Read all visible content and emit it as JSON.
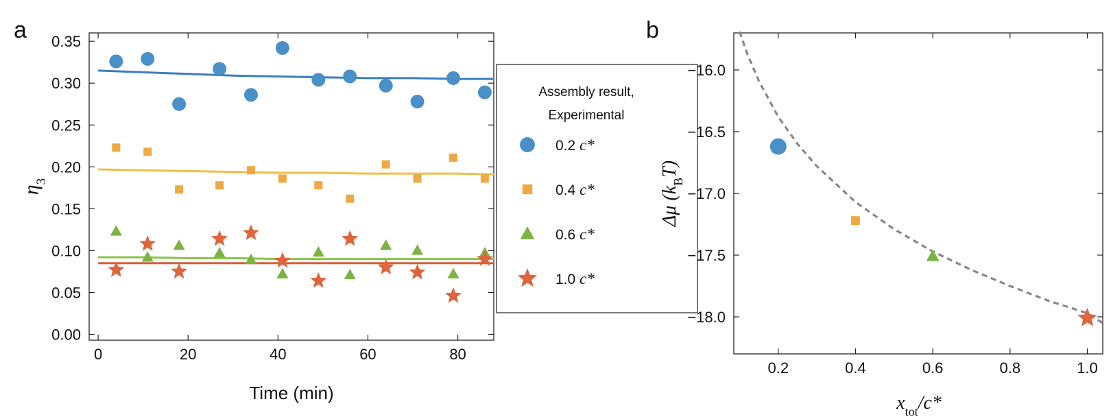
{
  "colors": {
    "blue": "#4A90C8",
    "orange": "#EFA944",
    "green": "#7CB342",
    "red": "#E0643C",
    "curve_blue": "#3B7DC4",
    "curve_orange": "#F2BE45",
    "curve_green": "#8BC34A",
    "curve_red": "#D6603A",
    "dashed": "#888888"
  },
  "legend": {
    "title_line1": "Assembly result,",
    "title_line2": "Experimental",
    "items": [
      {
        "num": "0.2",
        "unit": "c*",
        "marker": "circle",
        "color": "#4A90C8"
      },
      {
        "num": "0.4",
        "unit": "c*",
        "marker": "square",
        "color": "#EFA944"
      },
      {
        "num": "0.6",
        "unit": "c*",
        "marker": "triangle",
        "color": "#7CB342"
      },
      {
        "num": "1.0",
        "unit": "c*",
        "marker": "star",
        "color": "#E0643C"
      }
    ]
  },
  "chart_data": [
    {
      "panel_label": "a",
      "type": "scatter",
      "xlabel": "Time (min)",
      "ylabel_main": "η",
      "ylabel_sub": "3",
      "xlim": [
        -2,
        88
      ],
      "ylim": [
        -0.007,
        0.36
      ],
      "xticks": [
        0,
        20,
        40,
        60,
        80
      ],
      "xtick_labels": [
        "0",
        "20",
        "40",
        "60",
        "80"
      ],
      "yticks": [
        0.0,
        0.05,
        0.1,
        0.15,
        0.2,
        0.25,
        0.3,
        0.35
      ],
      "ytick_labels": [
        "0.00",
        "0.05",
        "0.10",
        "0.15",
        "0.20",
        "0.25",
        "0.30",
        "0.35"
      ],
      "series": [
        {
          "name": "0.2 c*",
          "marker": "circle",
          "color": "#4A90C8",
          "x": [
            4,
            11,
            18,
            27,
            34,
            41,
            49,
            56,
            64,
            71,
            79,
            86
          ],
          "y": [
            0.326,
            0.329,
            0.275,
            0.317,
            0.286,
            0.342,
            0.304,
            0.308,
            0.297,
            0.278,
            0.306,
            0.289
          ],
          "fit_x": [
            0,
            10,
            20,
            30,
            40,
            50,
            60,
            70,
            80,
            88
          ],
          "fit_y": [
            0.315,
            0.313,
            0.311,
            0.309,
            0.308,
            0.307,
            0.306,
            0.306,
            0.305,
            0.305
          ],
          "fit_color": "#3B7DC4"
        },
        {
          "name": "0.4 c*",
          "marker": "square",
          "color": "#EFA944",
          "x": [
            4,
            11,
            18,
            27,
            34,
            41,
            49,
            56,
            64,
            71,
            79,
            86
          ],
          "y": [
            0.223,
            0.218,
            0.173,
            0.178,
            0.196,
            0.186,
            0.178,
            0.162,
            0.203,
            0.186,
            0.211,
            0.186
          ],
          "fit_x": [
            0,
            10,
            20,
            30,
            40,
            50,
            60,
            70,
            80,
            88
          ],
          "fit_y": [
            0.197,
            0.196,
            0.195,
            0.194,
            0.193,
            0.193,
            0.192,
            0.192,
            0.192,
            0.191
          ],
          "fit_color": "#F2BE45"
        },
        {
          "name": "0.6 c*",
          "marker": "triangle",
          "color": "#7CB342",
          "x": [
            4,
            11,
            18,
            27,
            34,
            41,
            49,
            56,
            64,
            71,
            79,
            86
          ],
          "y": [
            0.123,
            0.092,
            0.106,
            0.097,
            0.089,
            0.072,
            0.098,
            0.071,
            0.106,
            0.1,
            0.072,
            0.097
          ],
          "fit_x": [
            0,
            10,
            20,
            30,
            40,
            50,
            60,
            70,
            80,
            88
          ],
          "fit_y": [
            0.092,
            0.092,
            0.091,
            0.091,
            0.09,
            0.09,
            0.09,
            0.09,
            0.09,
            0.09
          ],
          "fit_color": "#8BC34A"
        },
        {
          "name": "1.0 c*",
          "marker": "star",
          "color": "#E0643C",
          "x": [
            4,
            11,
            18,
            27,
            34,
            41,
            49,
            56,
            64,
            71,
            79,
            86
          ],
          "y": [
            0.077,
            0.108,
            0.075,
            0.114,
            0.121,
            0.088,
            0.064,
            0.114,
            0.08,
            0.074,
            0.046,
            0.09
          ],
          "fit_x": [
            0,
            10,
            20,
            30,
            40,
            50,
            60,
            70,
            80,
            88
          ],
          "fit_y": [
            0.085,
            0.085,
            0.085,
            0.085,
            0.085,
            0.085,
            0.085,
            0.085,
            0.085,
            0.085
          ],
          "fit_color": "#D6603A"
        }
      ]
    },
    {
      "panel_label": "b",
      "type": "scatter",
      "xlabel_main": "x",
      "xlabel_sub": "tot",
      "xlabel_tail": "/c*",
      "ylabel_main": "Δμ (k",
      "ylabel_sub": "B",
      "ylabel_tail": "T)",
      "xlim": [
        0.085,
        1.04
      ],
      "ylim": [
        -18.3,
        -15.7
      ],
      "xticks": [
        0.2,
        0.4,
        0.6,
        0.8,
        1.0
      ],
      "xtick_labels": [
        "0.2",
        "0.4",
        "0.6",
        "0.8",
        "1.0"
      ],
      "yticks": [
        -16.0,
        -16.5,
        -17.0,
        -17.5,
        -18.0
      ],
      "ytick_labels": [
        "−16.0",
        "−16.5",
        "−17.0",
        "−17.5",
        "−18.0"
      ],
      "points": [
        {
          "x": 0.2,
          "y": -16.62,
          "marker": "circle",
          "color": "#4A90C8"
        },
        {
          "x": 0.4,
          "y": -17.22,
          "marker": "square",
          "color": "#EFA944"
        },
        {
          "x": 0.6,
          "y": -17.51,
          "marker": "triangle",
          "color": "#7CB342"
        },
        {
          "x": 1.0,
          "y": -18.01,
          "marker": "star",
          "color": "#E0643C"
        }
      ],
      "curve": {
        "style": "dashed",
        "color": "#888888",
        "x": [
          0.1,
          0.12,
          0.15,
          0.2,
          0.25,
          0.3,
          0.4,
          0.5,
          0.6,
          0.7,
          0.8,
          0.9,
          1.0,
          1.04
        ],
        "y": [
          -15.69,
          -15.87,
          -16.09,
          -16.38,
          -16.6,
          -16.78,
          -17.07,
          -17.29,
          -17.47,
          -17.62,
          -17.75,
          -17.87,
          -17.97,
          -18.05
        ]
      }
    }
  ]
}
